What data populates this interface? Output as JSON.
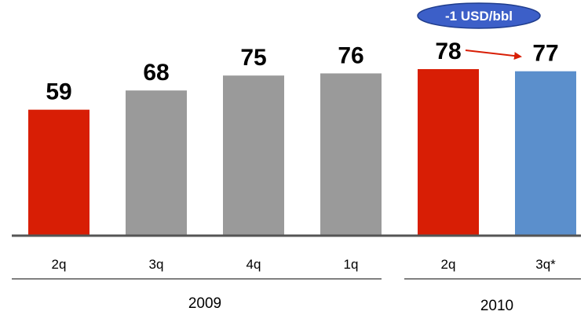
{
  "chart_data": {
    "type": "bar",
    "categories": [
      "2q",
      "3q",
      "4q",
      "1q",
      "2q",
      "3q*"
    ],
    "values": [
      59,
      68,
      75,
      76,
      78,
      77
    ],
    "groups": [
      {
        "label": "2009",
        "categories": [
          "2q",
          "3q",
          "4q",
          "1q"
        ]
      },
      {
        "label": "2010",
        "categories": [
          "2q",
          "3q*"
        ]
      }
    ],
    "bar_colors": [
      "#d81e05",
      "#9a9a9a",
      "#9a9a9a",
      "#9a9a9a",
      "#d81e05",
      "#5b8fcc"
    ],
    "ylim": [
      0,
      78
    ],
    "annotation": {
      "text": "-1 USD/bbl",
      "from_index": 4,
      "to_index": 5,
      "color": "#d81e05",
      "badge_color": "#3c5fc8"
    }
  }
}
